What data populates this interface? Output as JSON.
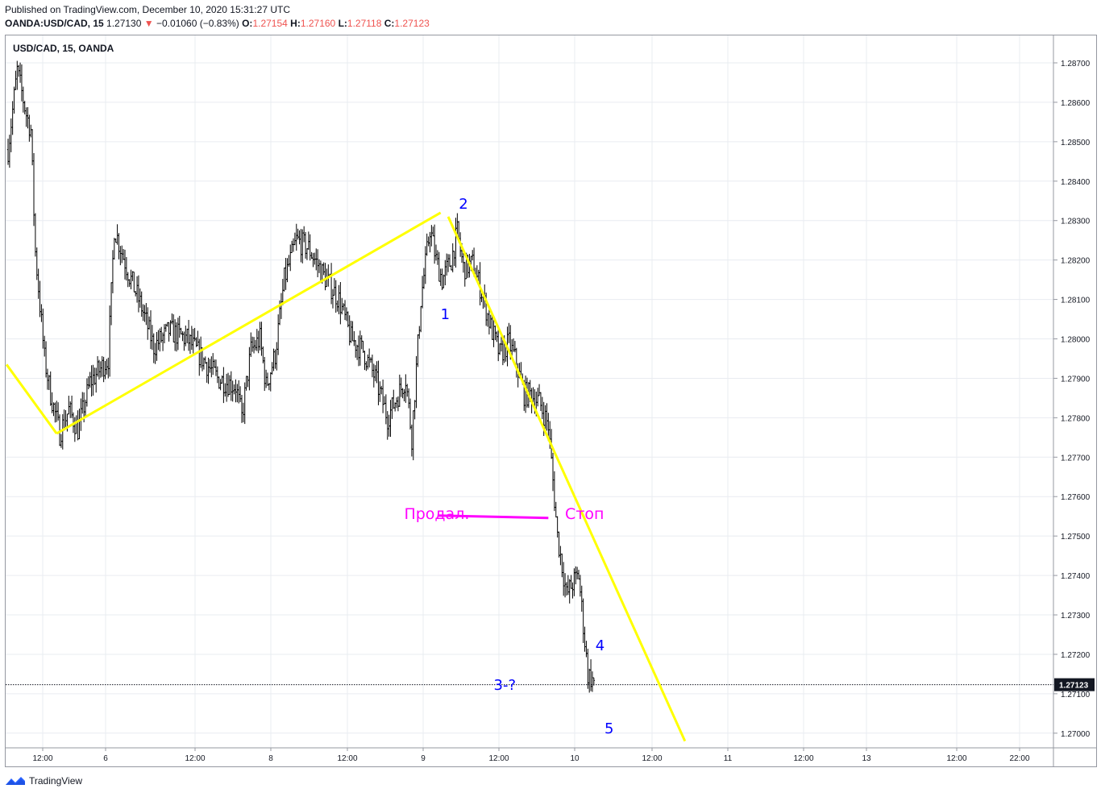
{
  "header": {
    "published": "Published on TradingView.com, December 10, 2020 15:31:27 UTC",
    "symbol": "OANDA:USD/CAD, 15",
    "last": "1.27130",
    "change": "−0.01060 (−0.83%)",
    "open_label": "O:",
    "open": "1.27154",
    "high_label": "H:",
    "high": "1.27160",
    "low_label": "L:",
    "low": "1.27118",
    "close_label": "C:",
    "close": "1.27123"
  },
  "chart_legend": "USD/CAD, 15, OANDA",
  "footer": {
    "brand": "TradingView"
  },
  "colors": {
    "trend": "#ffff00",
    "level": "#ff00ff",
    "label": "#0000ff",
    "candle": "#000000",
    "grid": "#e9ecf1",
    "down": "#ef5350"
  },
  "chart_data": {
    "type": "ohlc",
    "y_ticks": [
      "1.28700",
      "1.28600",
      "1.28500",
      "1.28400",
      "1.28300",
      "1.28200",
      "1.28100",
      "1.28000",
      "1.27900",
      "1.27800",
      "1.27700",
      "1.27600",
      "1.27500",
      "1.27400",
      "1.27300",
      "1.27200",
      "1.27100",
      "1.27000"
    ],
    "ylim": [
      1.26975,
      1.28835
    ],
    "x_ticks": [
      "12:00",
      "6",
      "12:00",
      "8",
      "12:00",
      "9",
      "12:00",
      "10",
      "12:00",
      "11",
      "12:00",
      "13",
      "12:00",
      "22:00"
    ],
    "last_price_label": "1.27123",
    "last_price": 1.27123,
    "price_path": [
      [
        0,
        1.2848
      ],
      [
        6,
        1.2868
      ],
      [
        12,
        1.2857
      ],
      [
        15,
        1.2853
      ],
      [
        18,
        1.2822
      ],
      [
        20,
        1.2813
      ],
      [
        24,
        1.2795
      ],
      [
        28,
        1.2786
      ],
      [
        34,
        1.2776
      ],
      [
        40,
        1.2782
      ],
      [
        46,
        1.2777
      ],
      [
        54,
        1.2789
      ],
      [
        62,
        1.2793
      ],
      [
        66,
        1.2795
      ],
      [
        70,
        1.2828
      ],
      [
        80,
        1.2816
      ],
      [
        88,
        1.2808
      ],
      [
        96,
        1.2798
      ],
      [
        106,
        1.2802
      ],
      [
        118,
        1.28
      ],
      [
        128,
        1.2795
      ],
      [
        138,
        1.279
      ],
      [
        150,
        1.2788
      ],
      [
        154,
        1.278
      ],
      [
        160,
        1.2797
      ],
      [
        166,
        1.28
      ],
      [
        170,
        1.2788
      ],
      [
        176,
        1.2796
      ],
      [
        182,
        1.2815
      ],
      [
        190,
        1.2825
      ],
      [
        198,
        1.2823
      ],
      [
        208,
        1.2816
      ],
      [
        218,
        1.281
      ],
      [
        226,
        1.28
      ],
      [
        234,
        1.2797
      ],
      [
        242,
        1.279
      ],
      [
        250,
        1.278
      ],
      [
        256,
        1.2785
      ],
      [
        262,
        1.279
      ],
      [
        266,
        1.2775
      ],
      [
        272,
        1.281
      ],
      [
        278,
        1.2828
      ],
      [
        282,
        1.282
      ],
      [
        286,
        1.2815
      ],
      [
        292,
        1.282
      ],
      [
        296,
        1.2827
      ],
      [
        300,
        1.2818
      ],
      [
        306,
        1.2819
      ],
      [
        312,
        1.2812
      ],
      [
        318,
        1.2803
      ],
      [
        324,
        1.2796
      ],
      [
        330,
        1.2799
      ],
      [
        334,
        1.2795
      ],
      [
        340,
        1.2786
      ],
      [
        344,
        1.2786
      ],
      [
        350,
        1.2784
      ],
      [
        356,
        1.2778
      ],
      [
        362,
        1.275
      ],
      [
        368,
        1.2735
      ],
      [
        372,
        1.2738
      ],
      [
        376,
        1.274
      ],
      [
        382,
        1.2715
      ],
      [
        386,
        1.2713
      ]
    ],
    "total_bars": 420,
    "annotations": [
      {
        "type": "trendline",
        "points": [
          [
            -1,
            1.27935
          ],
          [
            32,
            1.2776
          ]
        ]
      },
      {
        "type": "trendline",
        "points": [
          [
            32,
            1.2776
          ],
          [
            285,
            1.2832
          ]
        ]
      },
      {
        "type": "trendline",
        "points": [
          [
            290,
            1.2831
          ],
          [
            446,
            1.2698
          ]
        ]
      },
      {
        "type": "hline",
        "from": 283,
        "to": 356,
        "price": 1.2755
      },
      {
        "type": "text",
        "text": "1",
        "bar": 285,
        "price": 1.2805
      },
      {
        "type": "text",
        "text": "2",
        "bar": 297,
        "price": 1.2833
      },
      {
        "type": "text",
        "text": "3-?",
        "bar": 320,
        "price": 1.2711
      },
      {
        "type": "text",
        "text": "4",
        "bar": 387,
        "price": 1.2721
      },
      {
        "type": "text",
        "text": "5",
        "bar": 393,
        "price": 1.27
      },
      {
        "type": "text",
        "text": "Продал.",
        "bar": 261,
        "price": 1.27543
      },
      {
        "type": "text",
        "text": "Стоп",
        "bar": 367,
        "price": 1.27543
      }
    ]
  }
}
